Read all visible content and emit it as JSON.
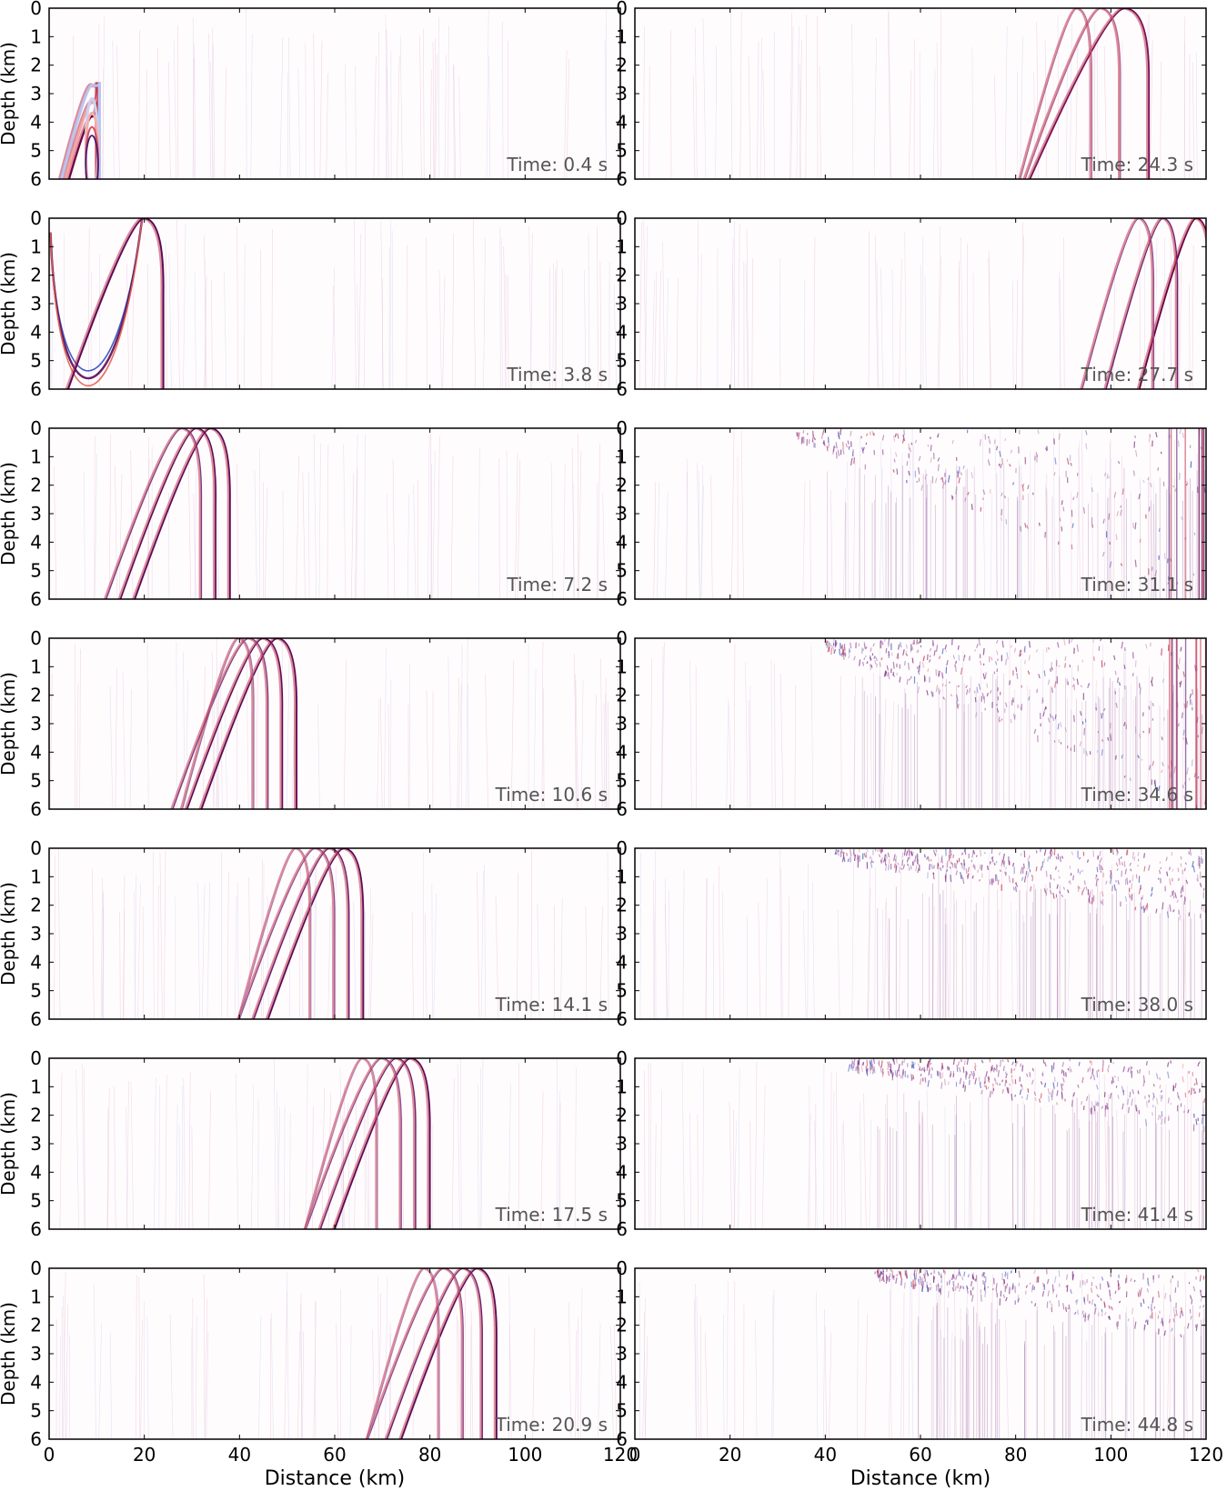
{
  "chart_data": [
    {
      "type": "heatmap",
      "time_label": "Time: 0.4 s",
      "ylabel": "Depth (km)",
      "xlabel": "",
      "xlim": [
        0,
        120
      ],
      "ylim": [
        6,
        0
      ],
      "xticks": [
        0,
        20,
        40,
        60,
        80,
        100,
        120
      ],
      "yticks": [
        0,
        1,
        2,
        3,
        4,
        5,
        6
      ],
      "arcs": [
        {
          "x_center": 9,
          "x_max": 10.2,
          "top": 3.8,
          "color": "#6b0046",
          "w": 2.2
        },
        {
          "x_center": 9,
          "x_max": 10.4,
          "top": 3.3,
          "color": "#f2a6a0",
          "w": 2.6
        },
        {
          "x_center": 9,
          "x_max": 10.6,
          "top": 2.7,
          "color": "#b9c5f2",
          "w": 3.0
        }
      ]
    },
    {
      "type": "heatmap",
      "time_label": "Time: 24.3 s",
      "ylabel": "",
      "xlabel": "",
      "xlim": [
        0,
        120
      ],
      "ylim": [
        6,
        0
      ],
      "xticks": [
        0,
        20,
        40,
        60,
        80,
        100,
        120
      ],
      "yticks": [
        0,
        1,
        2,
        3,
        4,
        5,
        6
      ],
      "arcs": [
        {
          "x_center": 103,
          "x_max": 108,
          "top": 0,
          "color": "#7a1058",
          "w": 1.8
        },
        {
          "x_center": 98,
          "x_max": 102,
          "top": 0,
          "color": "#b06090",
          "w": 1.2
        },
        {
          "x_center": 93,
          "x_max": 96,
          "top": 0,
          "color": "#b06090",
          "w": 1.0
        }
      ]
    },
    {
      "type": "heatmap",
      "time_label": "Time: 3.8 s",
      "ylabel": "Depth (km)",
      "xlabel": "",
      "xlim": [
        0,
        120
      ],
      "ylim": [
        6,
        0
      ],
      "xticks": [
        0,
        20,
        40,
        60,
        80,
        100,
        120
      ],
      "yticks": [
        0,
        1,
        2,
        3,
        4,
        5,
        6
      ],
      "arcs": [
        {
          "x_center": 20,
          "x_max": 24,
          "top": 0,
          "color": "#5a0a58",
          "w": 2.0
        }
      ],
      "bowl": {
        "x_left": 0.3,
        "x_right": 20,
        "bottom": 5.8,
        "color": "#5a0a58"
      }
    },
    {
      "type": "heatmap",
      "time_label": "Time: 27.7 s",
      "ylabel": "",
      "xlabel": "",
      "xlim": [
        0,
        120
      ],
      "ylim": [
        6,
        0
      ],
      "xticks": [
        0,
        20,
        40,
        60,
        80,
        100,
        120
      ],
      "yticks": [
        0,
        1,
        2,
        3,
        4,
        5,
        6
      ],
      "arcs": [
        {
          "x_center": 118,
          "x_max": 121,
          "top": 0,
          "color": "#6b0046",
          "w": 1.8
        },
        {
          "x_center": 111,
          "x_max": 114,
          "top": 0,
          "color": "#6b2070",
          "w": 1.4
        },
        {
          "x_center": 106,
          "x_max": 109,
          "top": 0,
          "color": "#8a4a90",
          "w": 1.2
        }
      ]
    },
    {
      "type": "heatmap",
      "time_label": "Time: 7.2 s",
      "ylabel": "Depth (km)",
      "xlabel": "",
      "xlim": [
        0,
        120
      ],
      "ylim": [
        6,
        0
      ],
      "xticks": [
        0,
        20,
        40,
        60,
        80,
        100,
        120
      ],
      "yticks": [
        0,
        1,
        2,
        3,
        4,
        5,
        6
      ],
      "arcs": [
        {
          "x_center": 34,
          "x_max": 38,
          "top": 0,
          "color": "#5a0a58",
          "w": 1.8
        },
        {
          "x_center": 31,
          "x_max": 35,
          "top": 0,
          "color": "#5a0a58",
          "w": 1.6
        },
        {
          "x_center": 28,
          "x_max": 32,
          "top": 0,
          "color": "#7a3a80",
          "w": 1.3
        }
      ]
    },
    {
      "type": "heatmap",
      "time_label": "Time: 31.1 s",
      "ylabel": "",
      "xlabel": "",
      "xlim": [
        0,
        120
      ],
      "ylim": [
        6,
        0
      ],
      "xticks": [
        0,
        20,
        40,
        60,
        80,
        100,
        120
      ],
      "yticks": [
        0,
        1,
        2,
        3,
        4,
        5,
        6
      ],
      "arcs": []
    },
    {
      "type": "heatmap",
      "time_label": "Time: 10.6 s",
      "ylabel": "Depth (km)",
      "xlabel": "",
      "xlim": [
        0,
        120
      ],
      "ylim": [
        6,
        0
      ],
      "xticks": [
        0,
        20,
        40,
        60,
        80,
        100,
        120
      ],
      "yticks": [
        0,
        1,
        2,
        3,
        4,
        5,
        6
      ],
      "arcs": [
        {
          "x_center": 48,
          "x_max": 52,
          "top": 0,
          "color": "#5a0a58",
          "w": 1.8
        },
        {
          "x_center": 45,
          "x_max": 49,
          "top": 0,
          "color": "#5a0a58",
          "w": 1.6
        },
        {
          "x_center": 42,
          "x_max": 46,
          "top": 0,
          "color": "#7a3a80",
          "w": 1.3
        },
        {
          "x_center": 40,
          "x_max": 43,
          "top": 0,
          "color": "#9a6aa0",
          "w": 1.1
        }
      ]
    },
    {
      "type": "heatmap",
      "time_label": "Time: 34.6 s",
      "ylabel": "",
      "xlabel": "",
      "xlim": [
        0,
        120
      ],
      "ylim": [
        6,
        0
      ],
      "xticks": [
        0,
        20,
        40,
        60,
        80,
        100,
        120
      ],
      "yticks": [
        0,
        1,
        2,
        3,
        4,
        5,
        6
      ],
      "arcs": []
    },
    {
      "type": "heatmap",
      "time_label": "Time: 14.1 s",
      "ylabel": "Depth (km)",
      "xlabel": "",
      "xlim": [
        0,
        120
      ],
      "ylim": [
        6,
        0
      ],
      "xticks": [
        0,
        20,
        40,
        60,
        80,
        100,
        120
      ],
      "yticks": [
        0,
        1,
        2,
        3,
        4,
        5,
        6
      ],
      "arcs": [
        {
          "x_center": 62,
          "x_max": 66,
          "top": 0,
          "color": "#5a0a58",
          "w": 1.8
        },
        {
          "x_center": 59,
          "x_max": 63,
          "top": 0,
          "color": "#6b2070",
          "w": 1.5
        },
        {
          "x_center": 56,
          "x_max": 60,
          "top": 0,
          "color": "#8a4a90",
          "w": 1.2
        },
        {
          "x_center": 52,
          "x_max": 55,
          "top": 0,
          "color": "#aa7ab0",
          "w": 1.0
        }
      ]
    },
    {
      "type": "heatmap",
      "time_label": "Time: 38.0 s",
      "ylabel": "",
      "xlabel": "",
      "xlim": [
        0,
        120
      ],
      "ylim": [
        6,
        0
      ],
      "xticks": [
        0,
        20,
        40,
        60,
        80,
        100,
        120
      ],
      "yticks": [
        0,
        1,
        2,
        3,
        4,
        5,
        6
      ],
      "arcs": []
    },
    {
      "type": "heatmap",
      "time_label": "Time: 17.5 s",
      "ylabel": "Depth (km)",
      "xlabel": "",
      "xlim": [
        0,
        120
      ],
      "ylim": [
        6,
        0
      ],
      "xticks": [
        0,
        20,
        40,
        60,
        80,
        100,
        120
      ],
      "yticks": [
        0,
        1,
        2,
        3,
        4,
        5,
        6
      ],
      "arcs": [
        {
          "x_center": 76,
          "x_max": 80,
          "top": 0,
          "color": "#5a0a58",
          "w": 1.8
        },
        {
          "x_center": 73,
          "x_max": 77,
          "top": 0,
          "color": "#6b2070",
          "w": 1.4
        },
        {
          "x_center": 70,
          "x_max": 74,
          "top": 0,
          "color": "#8a4a90",
          "w": 1.2
        },
        {
          "x_center": 66,
          "x_max": 69,
          "top": 0,
          "color": "#aa7ab0",
          "w": 1.0
        }
      ]
    },
    {
      "type": "heatmap",
      "time_label": "Time: 41.4 s",
      "ylabel": "",
      "xlabel": "",
      "xlim": [
        0,
        120
      ],
      "ylim": [
        6,
        0
      ],
      "xticks": [
        0,
        20,
        40,
        60,
        80,
        100,
        120
      ],
      "yticks": [
        0,
        1,
        2,
        3,
        4,
        5,
        6
      ],
      "arcs": []
    },
    {
      "type": "heatmap",
      "time_label": "Time: 20.9 s",
      "ylabel": "Depth (km)",
      "xlabel": "Distance (km)",
      "xlim": [
        0,
        120
      ],
      "ylim": [
        6,
        0
      ],
      "xticks": [
        0,
        20,
        40,
        60,
        80,
        100,
        120
      ],
      "yticks": [
        0,
        1,
        2,
        3,
        4,
        5,
        6
      ],
      "arcs": [
        {
          "x_center": 90,
          "x_max": 94,
          "top": 0,
          "color": "#5a0a58",
          "w": 1.8
        },
        {
          "x_center": 87,
          "x_max": 91,
          "top": 0,
          "color": "#6b2070",
          "w": 1.4
        },
        {
          "x_center": 83,
          "x_max": 87,
          "top": 0,
          "color": "#8a4a90",
          "w": 1.2
        },
        {
          "x_center": 79,
          "x_max": 82,
          "top": 0,
          "color": "#aa7ab0",
          "w": 1.0
        }
      ]
    },
    {
      "type": "heatmap",
      "time_label": "Time: 44.8 s",
      "ylabel": "",
      "xlabel": "Distance (km)",
      "xlim": [
        0,
        120
      ],
      "ylim": [
        6,
        0
      ],
      "xticks": [
        0,
        20,
        40,
        60,
        80,
        100,
        120
      ],
      "yticks": [
        0,
        1,
        2,
        3,
        4,
        5,
        6
      ],
      "arcs": []
    }
  ],
  "colors": {
    "axis": "#000000",
    "label_text": "#555555",
    "wave_dark": "#5a0a58",
    "wave_red": "#c0304a",
    "wave_blue": "#3050c0",
    "scatter": "#7a2a80"
  }
}
